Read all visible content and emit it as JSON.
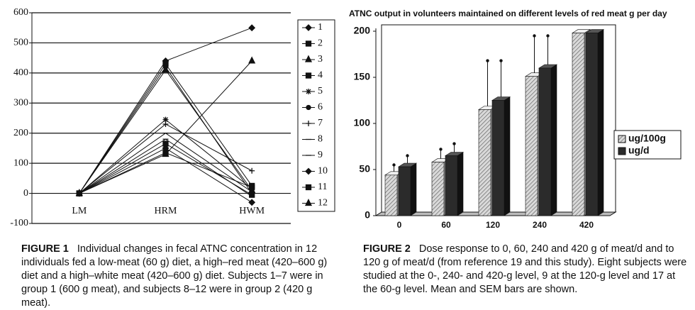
{
  "chart_data": [
    {
      "type": "line",
      "caption_label": "FIGURE 1",
      "caption": "Individual changes in fecal ATNC concentration in 12 individuals fed a low-meat (60 g) diet, a high–red meat (420–600 g) diet and a high–white meat (420–600 g) diet. Subjects 1–7 were in group 1 (600 g meat), and subjects 8–12 were in group 2 (420 g meat).",
      "categories": [
        "LM",
        "HRM",
        "HWM"
      ],
      "ylim": [
        -100,
        600
      ],
      "yticks": [
        -100,
        0,
        100,
        200,
        300,
        400,
        500,
        600
      ],
      "grid": true,
      "series": [
        {
          "name": "1",
          "color": "#111",
          "marker": "diamond",
          "values": [
            0,
            440,
            550
          ]
        },
        {
          "name": "2",
          "color": "#111",
          "marker": "square",
          "values": [
            0,
            430,
            25
          ]
        },
        {
          "name": "3",
          "color": "#111",
          "marker": "triangle",
          "values": [
            0,
            410,
            10
          ]
        },
        {
          "name": "4",
          "color": "#111",
          "marker": "square",
          "values": [
            0,
            165,
            -5
          ]
        },
        {
          "name": "5",
          "color": "#111",
          "marker": "star",
          "values": [
            0,
            245,
            15
          ]
        },
        {
          "name": "6",
          "color": "#111",
          "marker": "circle",
          "values": [
            0,
            420,
            0
          ]
        },
        {
          "name": "7",
          "color": "#111",
          "marker": "plus",
          "values": [
            0,
            230,
            75
          ]
        },
        {
          "name": "8",
          "color": "#111",
          "marker": "dash",
          "values": [
            0,
            200,
            5
          ]
        },
        {
          "name": "9",
          "color": "#111",
          "marker": "dash",
          "values": [
            0,
            180,
            -10
          ]
        },
        {
          "name": "10",
          "color": "#111",
          "marker": "diamond",
          "values": [
            0,
            150,
            -30
          ]
        },
        {
          "name": "11",
          "color": "#111",
          "marker": "square",
          "values": [
            0,
            135,
            20
          ]
        },
        {
          "name": "12",
          "color": "#111",
          "marker": "triangle",
          "values": [
            0,
            130,
            440
          ]
        }
      ]
    },
    {
      "type": "bar",
      "title": "ATNC output in volunteers maintained on different levels of red meat g per day",
      "caption_label": "FIGURE 2",
      "caption": "Dose response to 0, 60, 240 and 420 g of meat/d and to 120 g of meat/d (from reference 19 and this study). Eight subjects were studied at the 0-, 240- and 420-g level, 9 at the 120-g level and 17 at the 60-g level. Mean and SEM bars are shown.",
      "categories": [
        "0",
        "60",
        "120",
        "240",
        "420"
      ],
      "ylim": [
        0,
        200
      ],
      "yticks": [
        0,
        50,
        100,
        150,
        200
      ],
      "series": [
        {
          "name": "ug/100g",
          "color": "#d9d9d9",
          "pattern": "hatch",
          "values": [
            44,
            58,
            115,
            151,
            198
          ],
          "errors": [
            11,
            14,
            53,
            44,
            null
          ]
        },
        {
          "name": "ug/d",
          "color": "#2b2b2b",
          "values": [
            53,
            65,
            125,
            160,
            198
          ],
          "errors": [
            12,
            13,
            43,
            35,
            null
          ]
        }
      ]
    }
  ]
}
